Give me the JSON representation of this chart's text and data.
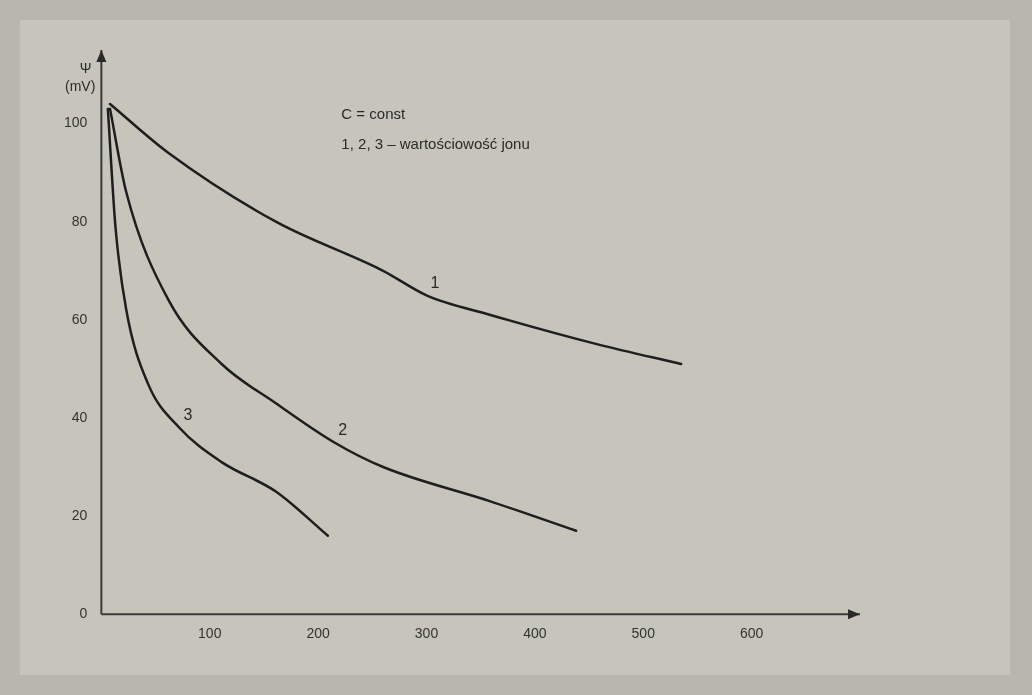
{
  "chart_data": {
    "type": "line",
    "ylabel": "Ψ (mV)",
    "annotations": [
      "C = const",
      "1, 2, 3 – wartościowość jonu"
    ],
    "xlim": [
      0,
      700
    ],
    "xticks": [
      100,
      200,
      300,
      400,
      500,
      600
    ],
    "ylim": [
      0,
      115
    ],
    "yticks": [
      0,
      20,
      40,
      60,
      80,
      100
    ],
    "grid": false,
    "legend": false,
    "marker": "none",
    "line_style": "solid",
    "series": [
      {
        "name": "1",
        "color": "#1e1e1e",
        "x": [
          8,
          62,
          161,
          260,
          300,
          359,
          458,
          535
        ],
        "values": [
          104,
          94,
          80,
          70,
          65,
          61,
          55,
          51
        ]
      },
      {
        "name": "2",
        "color": "#1e1e1e",
        "x": [
          8,
          23,
          62,
          111,
          161,
          215,
          260,
          359,
          438
        ],
        "values": [
          103,
          86,
          64,
          51,
          43,
          35,
          30,
          23,
          17
        ]
      },
      {
        "name": "3",
        "color": "#1e1e1e",
        "x": [
          6,
          13,
          23,
          43,
          72,
          111,
          161,
          209
        ],
        "values": [
          103,
          79,
          62,
          47,
          38,
          31,
          25,
          16
        ]
      }
    ]
  }
}
